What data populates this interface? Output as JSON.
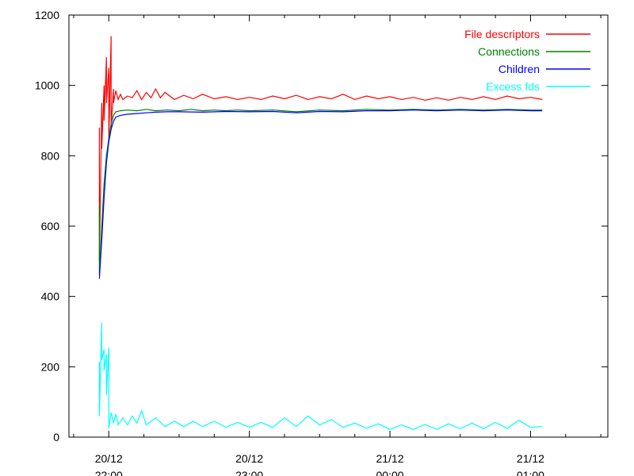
{
  "chart_data": {
    "type": "line",
    "title": "",
    "xlabel": "",
    "ylabel": "",
    "ylim": [
      0,
      1200
    ],
    "yticks": [
      0,
      200,
      400,
      600,
      800,
      1000,
      1200
    ],
    "xlim": [
      "20/12 21:43",
      "21/12 01:33"
    ],
    "xticks": [
      {
        "time": "20/12 22:00",
        "date": "20/12",
        "hour": "22:00"
      },
      {
        "time": "20/12 23:00",
        "date": "20/12",
        "hour": "23:00"
      },
      {
        "time": "21/12 00:00",
        "date": "21/12",
        "hour": "00:00"
      },
      {
        "time": "21/12 01:00",
        "date": "21/12",
        "hour": "01:00"
      }
    ],
    "grid": false,
    "legend_position": "top-right",
    "series": [
      {
        "name": "File descriptors",
        "color": "#ff0000",
        "points": [
          [
            "20/12 21:56",
            880
          ],
          [
            "20/12 21:56",
            500
          ],
          [
            "20/12 21:57",
            950
          ],
          [
            "20/12 21:57",
            820
          ],
          [
            "20/12 21:58",
            1000
          ],
          [
            "20/12 21:58",
            900
          ],
          [
            "20/12 21:59",
            1080
          ],
          [
            "20/12 21:59",
            950
          ],
          [
            "20/12 22:00",
            1050
          ],
          [
            "20/12 22:00",
            840
          ],
          [
            "20/12 22:01",
            1140
          ],
          [
            "20/12 22:01",
            880
          ],
          [
            "20/12 22:02",
            990
          ],
          [
            "20/12 22:02",
            950
          ],
          [
            "20/12 22:03",
            985
          ],
          [
            "20/12 22:04",
            960
          ],
          [
            "20/12 22:05",
            975
          ],
          [
            "20/12 22:06",
            960
          ],
          [
            "20/12 22:08",
            970
          ],
          [
            "20/12 22:10",
            965
          ],
          [
            "20/12 22:12",
            985
          ],
          [
            "20/12 22:14",
            960
          ],
          [
            "20/12 22:16",
            980
          ],
          [
            "20/12 22:18",
            965
          ],
          [
            "20/12 22:20",
            990
          ],
          [
            "20/12 22:22",
            965
          ],
          [
            "20/12 22:24",
            980
          ],
          [
            "20/12 22:28",
            960
          ],
          [
            "20/12 22:32",
            972
          ],
          [
            "20/12 22:36",
            962
          ],
          [
            "20/12 22:40",
            975
          ],
          [
            "20/12 22:45",
            962
          ],
          [
            "20/12 22:50",
            968
          ],
          [
            "20/12 22:55",
            960
          ],
          [
            "20/12 23:00",
            966
          ],
          [
            "20/12 23:05",
            960
          ],
          [
            "20/12 23:10",
            970
          ],
          [
            "20/12 23:15",
            962
          ],
          [
            "20/12 23:20",
            972
          ],
          [
            "20/12 23:25",
            960
          ],
          [
            "20/12 23:30",
            968
          ],
          [
            "20/12 23:35",
            962
          ],
          [
            "20/12 23:40",
            975
          ],
          [
            "20/12 23:45",
            960
          ],
          [
            "20/12 23:50",
            970
          ],
          [
            "20/12 23:55",
            962
          ],
          [
            "21/12 00:00",
            968
          ],
          [
            "21/12 00:05",
            960
          ],
          [
            "21/12 00:10",
            966
          ],
          [
            "21/12 00:15",
            958
          ],
          [
            "21/12 00:20",
            965
          ],
          [
            "21/12 00:25",
            958
          ],
          [
            "21/12 00:30",
            966
          ],
          [
            "21/12 00:35",
            960
          ],
          [
            "21/12 00:40",
            968
          ],
          [
            "21/12 00:45",
            960
          ],
          [
            "21/12 00:50",
            970
          ],
          [
            "21/12 00:55",
            962
          ],
          [
            "21/12 01:00",
            966
          ],
          [
            "21/12 01:05",
            960
          ]
        ]
      },
      {
        "name": "Connections",
        "color": "#008000",
        "points": [
          [
            "20/12 21:56",
            660
          ],
          [
            "20/12 21:56",
            460
          ],
          [
            "20/12 21:57",
            600
          ],
          [
            "20/12 21:58",
            720
          ],
          [
            "20/12 21:59",
            800
          ],
          [
            "20/12 22:00",
            850
          ],
          [
            "20/12 22:01",
            890
          ],
          [
            "20/12 22:02",
            915
          ],
          [
            "20/12 22:03",
            925
          ],
          [
            "20/12 22:05",
            928
          ],
          [
            "20/12 22:08",
            930
          ],
          [
            "20/12 22:12",
            928
          ],
          [
            "20/12 22:16",
            932
          ],
          [
            "20/12 22:20",
            928
          ],
          [
            "20/12 22:25",
            930
          ],
          [
            "20/12 22:30",
            928
          ],
          [
            "20/12 22:35",
            932
          ],
          [
            "20/12 22:40",
            928
          ],
          [
            "20/12 22:45",
            930
          ],
          [
            "20/12 22:50",
            928
          ],
          [
            "20/12 22:55",
            930
          ],
          [
            "20/12 23:00",
            928
          ],
          [
            "20/12 23:10",
            930
          ],
          [
            "20/12 23:20",
            925
          ],
          [
            "20/12 23:30",
            930
          ],
          [
            "20/12 23:40",
            928
          ],
          [
            "20/12 23:50",
            932
          ],
          [
            "21/12 00:00",
            930
          ],
          [
            "21/12 00:10",
            932
          ],
          [
            "21/12 00:20",
            930
          ],
          [
            "21/12 00:30",
            932
          ],
          [
            "21/12 00:40",
            930
          ],
          [
            "21/12 00:50",
            932
          ],
          [
            "21/12 01:00",
            930
          ],
          [
            "21/12 01:05",
            930
          ]
        ]
      },
      {
        "name": "Children",
        "color": "#0000ff",
        "points": [
          [
            "20/12 21:56",
            450
          ],
          [
            "20/12 21:57",
            560
          ],
          [
            "20/12 21:58",
            680
          ],
          [
            "20/12 21:59",
            780
          ],
          [
            "20/12 22:00",
            840
          ],
          [
            "20/12 22:01",
            875
          ],
          [
            "20/12 22:02",
            898
          ],
          [
            "20/12 22:03",
            910
          ],
          [
            "20/12 22:05",
            915
          ],
          [
            "20/12 22:08",
            918
          ],
          [
            "20/12 22:12",
            920
          ],
          [
            "20/12 22:16",
            922
          ],
          [
            "20/12 22:20",
            924
          ],
          [
            "20/12 22:25",
            925
          ],
          [
            "20/12 22:30",
            925
          ],
          [
            "20/12 22:40",
            924
          ],
          [
            "20/12 22:50",
            926
          ],
          [
            "20/12 23:00",
            925
          ],
          [
            "20/12 23:10",
            926
          ],
          [
            "20/12 23:20",
            922
          ],
          [
            "20/12 23:30",
            926
          ],
          [
            "20/12 23:40",
            925
          ],
          [
            "20/12 23:50",
            928
          ],
          [
            "21/12 00:00",
            928
          ],
          [
            "21/12 00:10",
            930
          ],
          [
            "21/12 00:20",
            928
          ],
          [
            "21/12 00:30",
            930
          ],
          [
            "21/12 00:40",
            928
          ],
          [
            "21/12 00:50",
            930
          ],
          [
            "21/12 01:00",
            928
          ],
          [
            "21/12 01:05",
            928
          ]
        ]
      },
      {
        "name": "Excess fds",
        "color": "#00ffff",
        "points": [
          [
            "20/12 21:56",
            215
          ],
          [
            "20/12 21:56",
            60
          ],
          [
            "20/12 21:57",
            325
          ],
          [
            "20/12 21:57",
            220
          ],
          [
            "20/12 21:58",
            250
          ],
          [
            "20/12 21:58",
            190
          ],
          [
            "20/12 21:59",
            235
          ],
          [
            "20/12 21:59",
            120
          ],
          [
            "20/12 22:00",
            255
          ],
          [
            "20/12 22:00",
            25
          ],
          [
            "20/12 22:01",
            70
          ],
          [
            "20/12 22:02",
            40
          ],
          [
            "20/12 22:03",
            65
          ],
          [
            "20/12 22:04",
            35
          ],
          [
            "20/12 22:06",
            55
          ],
          [
            "20/12 22:08",
            35
          ],
          [
            "20/12 22:10",
            60
          ],
          [
            "20/12 22:12",
            40
          ],
          [
            "20/12 22:14",
            75
          ],
          [
            "20/12 22:16",
            35
          ],
          [
            "20/12 22:20",
            55
          ],
          [
            "20/12 22:24",
            30
          ],
          [
            "20/12 22:28",
            45
          ],
          [
            "20/12 22:32",
            30
          ],
          [
            "20/12 22:36",
            45
          ],
          [
            "20/12 22:40",
            30
          ],
          [
            "20/12 22:45",
            45
          ],
          [
            "20/12 22:50",
            28
          ],
          [
            "20/12 22:55",
            42
          ],
          [
            "20/12 23:00",
            28
          ],
          [
            "20/12 23:05",
            42
          ],
          [
            "20/12 23:10",
            28
          ],
          [
            "20/12 23:15",
            55
          ],
          [
            "20/12 23:20",
            30
          ],
          [
            "20/12 23:25",
            60
          ],
          [
            "20/12 23:30",
            35
          ],
          [
            "20/12 23:35",
            50
          ],
          [
            "20/12 23:40",
            28
          ],
          [
            "20/12 23:45",
            40
          ],
          [
            "20/12 23:50",
            25
          ],
          [
            "20/12 23:55",
            38
          ],
          [
            "21/12 00:00",
            22
          ],
          [
            "21/12 00:05",
            35
          ],
          [
            "21/12 00:10",
            22
          ],
          [
            "21/12 00:15",
            36
          ],
          [
            "21/12 00:20",
            22
          ],
          [
            "21/12 00:25",
            38
          ],
          [
            "21/12 00:30",
            24
          ],
          [
            "21/12 00:35",
            40
          ],
          [
            "21/12 00:40",
            24
          ],
          [
            "21/12 00:45",
            42
          ],
          [
            "21/12 00:50",
            25
          ],
          [
            "21/12 00:55",
            48
          ],
          [
            "21/12 01:00",
            28
          ],
          [
            "21/12 01:05",
            30
          ]
        ]
      }
    ]
  }
}
